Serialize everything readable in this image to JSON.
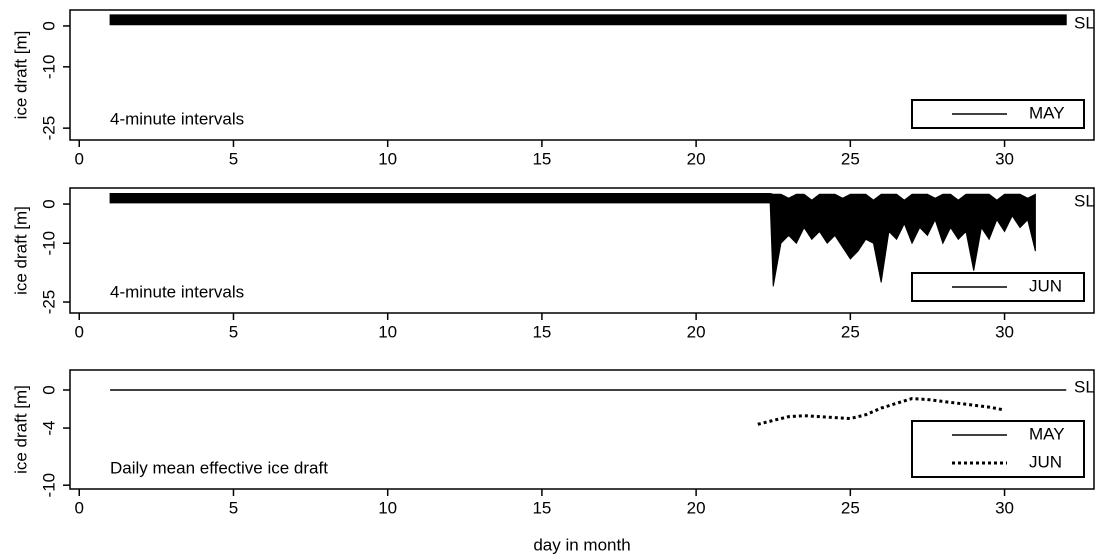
{
  "chart_data": [
    {
      "type": "area",
      "ylabel": "ice draft [m]",
      "annotation": "4-minute intervals",
      "sl_label": "SL",
      "xlim": [
        -0.3,
        32.9
      ],
      "xticks": [
        0,
        5,
        10,
        15,
        20,
        25,
        30
      ],
      "ylim": [
        -27.9,
        3.9
      ],
      "yticks": [
        0,
        -10,
        -25
      ],
      "legend": "lower right",
      "series": [
        {
          "name": "MAY",
          "color": "#000000",
          "x": [
            1,
            32
          ],
          "low": [
            0.3,
            0.3
          ],
          "high": [
            2.7,
            2.7
          ]
        }
      ]
    },
    {
      "type": "area",
      "ylabel": "ice draft [m]",
      "annotation": "4-minute intervals",
      "sl_label": "SL",
      "xlim": [
        -0.3,
        32.9
      ],
      "xticks": [
        0,
        5,
        10,
        15,
        20,
        25,
        30
      ],
      "ylim": [
        -27.8,
        4.1
      ],
      "yticks": [
        0,
        -10,
        -25
      ],
      "legend": "lower right",
      "series": [
        {
          "name": "JUN",
          "color": "#000000",
          "x": [
            1,
            22.4,
            22.5,
            22.75,
            23,
            23.25,
            23.5,
            23.75,
            24,
            24.25,
            24.5,
            24.75,
            25,
            25.25,
            25.5,
            25.75,
            26,
            26.25,
            26.5,
            26.75,
            27,
            27.25,
            27.5,
            27.75,
            28,
            28.25,
            28.5,
            28.75,
            29,
            29.25,
            29.5,
            29.75,
            30,
            30.25,
            30.5,
            30.75,
            31
          ],
          "low": [
            0.3,
            0.3,
            -21,
            -10,
            -8,
            -10,
            -6,
            -9,
            -7,
            -10,
            -8,
            -11,
            -14,
            -12,
            -9,
            -10,
            -20,
            -7,
            -9,
            -5,
            -10,
            -6,
            -8,
            -4,
            -10,
            -6,
            -9,
            -7,
            -17,
            -6,
            -9,
            -4,
            -7,
            -3,
            -6,
            -4,
            -12
          ],
          "high": [
            2.7,
            2.7,
            2.5,
            2.5,
            1.5,
            2.5,
            2.5,
            1,
            2.5,
            2.5,
            2.5,
            1.5,
            2.5,
            2.5,
            2.5,
            1,
            2.5,
            2.5,
            2.5,
            1,
            2.5,
            2.5,
            2.5,
            1.5,
            2.5,
            2.5,
            1,
            2.5,
            2.5,
            2.5,
            2.5,
            1,
            2.5,
            2.5,
            2.5,
            1.5,
            2.5
          ]
        }
      ]
    },
    {
      "type": "line",
      "ylabel": "ice draft [m]",
      "annotation": "Daily mean effective ice draft",
      "sl_label": "SL",
      "xlabel": "day  in  month",
      "xlim": [
        -0.3,
        32.9
      ],
      "xticks": [
        0,
        5,
        10,
        15,
        20,
        25,
        30
      ],
      "ylim": [
        -10.4,
        2.1
      ],
      "yticks": [
        0,
        -4,
        -10
      ],
      "legend": "lower right",
      "series": [
        {
          "name": "MAY",
          "color": "#000000",
          "line_style": "solid",
          "x": [
            1,
            32
          ],
          "values": [
            0,
            0
          ]
        },
        {
          "name": "JUN",
          "color": "#000000",
          "line_style": "dotted",
          "x": [
            22,
            22.5,
            23,
            23.5,
            24,
            24.5,
            25,
            25.5,
            26,
            26.5,
            27,
            27.5,
            28,
            28.5,
            29,
            29.5,
            30
          ],
          "values": [
            -3.6,
            -3.2,
            -2.8,
            -2.7,
            -2.8,
            -2.9,
            -3.0,
            -2.6,
            -1.9,
            -1.4,
            -0.9,
            -1.0,
            -1.2,
            -1.4,
            -1.6,
            -1.8,
            -2.1
          ]
        }
      ]
    }
  ]
}
